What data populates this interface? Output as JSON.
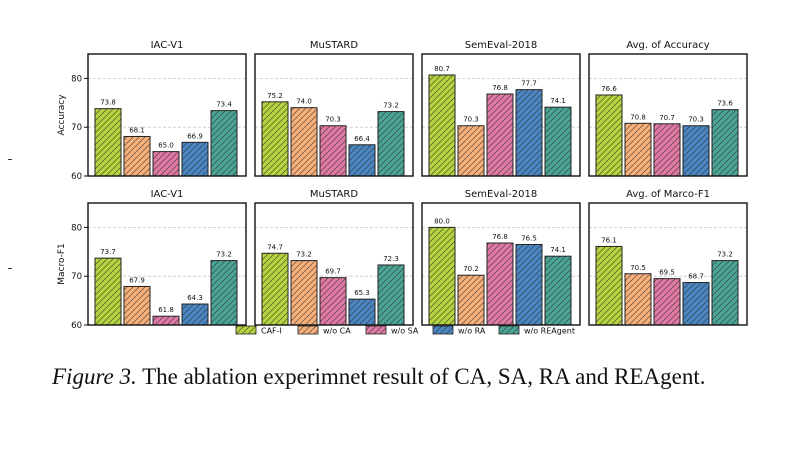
{
  "colors": {
    "CAF-I": "#b5d43f",
    "w/o CA": "#f8b07a",
    "w/o SA": "#e07aa5",
    "w/o RA": "#4a86c2",
    "w/o REAgent": "#4aa596"
  },
  "legend": [
    "CAF-I",
    "w/o CA",
    "w/o SA",
    "w/o RA",
    "w/o REAgent"
  ],
  "chart_data": [
    {
      "type": "bar",
      "title": "IAC-V1",
      "ylabel": "Accuracy",
      "ylim": [
        60,
        85
      ],
      "yticks": [
        60,
        70,
        80
      ],
      "categories": [
        "CAF-I",
        "w/o CA",
        "w/o SA",
        "w/o RA",
        "w/o REAgent"
      ],
      "values": [
        73.8,
        68.1,
        65.0,
        66.9,
        73.4
      ]
    },
    {
      "type": "bar",
      "title": "MuSTARD",
      "ylabel": "",
      "ylim": [
        60,
        85
      ],
      "categories": [
        "CAF-I",
        "w/o CA",
        "w/o SA",
        "w/o RA",
        "w/o REAgent"
      ],
      "values": [
        75.2,
        74.0,
        70.3,
        66.4,
        73.2
      ]
    },
    {
      "type": "bar",
      "title": "SemEval-2018",
      "ylabel": "",
      "ylim": [
        60,
        85
      ],
      "categories": [
        "CAF-I",
        "w/o CA",
        "w/o SA",
        "w/o RA",
        "w/o REAgent"
      ],
      "values": [
        80.7,
        70.3,
        76.8,
        77.7,
        74.1
      ]
    },
    {
      "type": "bar",
      "title": "Avg. of Accuracy",
      "ylabel": "",
      "ylim": [
        60,
        85
      ],
      "categories": [
        "CAF-I",
        "w/o CA",
        "w/o SA",
        "w/o RA",
        "w/o REAgent"
      ],
      "values": [
        76.6,
        70.8,
        70.7,
        70.3,
        73.6
      ]
    },
    {
      "type": "bar",
      "title": "IAC-V1",
      "ylabel": "Macro-F1",
      "ylim": [
        60,
        85
      ],
      "yticks": [
        60,
        70,
        80
      ],
      "categories": [
        "CAF-I",
        "w/o CA",
        "w/o SA",
        "w/o RA",
        "w/o REAgent"
      ],
      "values": [
        73.7,
        67.9,
        61.8,
        64.3,
        73.2
      ]
    },
    {
      "type": "bar",
      "title": "MuSTARD",
      "ylabel": "",
      "ylim": [
        60,
        85
      ],
      "categories": [
        "CAF-I",
        "w/o CA",
        "w/o SA",
        "w/o RA",
        "w/o REAgent"
      ],
      "values": [
        74.7,
        73.2,
        69.7,
        65.3,
        72.3
      ]
    },
    {
      "type": "bar",
      "title": "SemEval-2018",
      "ylabel": "",
      "ylim": [
        60,
        85
      ],
      "categories": [
        "CAF-I",
        "w/o CA",
        "w/o SA",
        "w/o RA",
        "w/o REAgent"
      ],
      "values": [
        80.0,
        70.2,
        76.8,
        76.5,
        74.1
      ]
    },
    {
      "type": "bar",
      "title": "Avg. of Marco-F1",
      "ylabel": "",
      "ylim": [
        60,
        85
      ],
      "categories": [
        "CAF-I",
        "w/o CA",
        "w/o SA",
        "w/o RA",
        "w/o REAgent"
      ],
      "values": [
        76.1,
        70.5,
        69.5,
        68.7,
        73.2
      ]
    }
  ],
  "caption": {
    "label": "Figure 3.",
    "text": " The ablation experimnet result of CA, SA, RA and REAgent."
  }
}
